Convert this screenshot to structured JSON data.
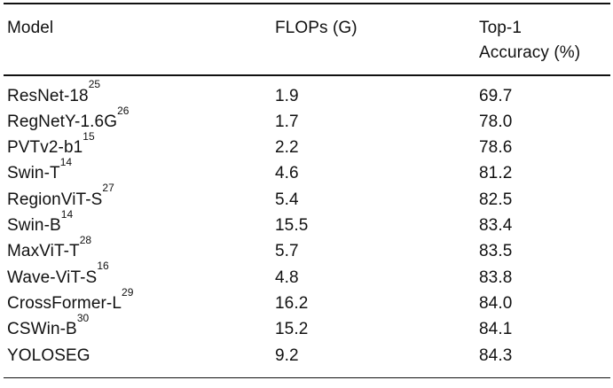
{
  "page": {
    "background": "#ffffff",
    "text_color": "#111111",
    "rule_color": "#111111"
  },
  "table": {
    "headers": {
      "model": "Model",
      "flops": "FLOPs (G)",
      "top1_line1": "Top-1",
      "top1_line2": "Accuracy (%)"
    },
    "rows": [
      {
        "model": "ResNet-18",
        "cite": "25",
        "flops": "1.9",
        "top1": "69.7"
      },
      {
        "model": "RegNetY-1.6G",
        "cite": "26",
        "flops": "1.7",
        "top1": "78.0"
      },
      {
        "model": "PVTv2-b1",
        "cite": "15",
        "flops": "2.2",
        "top1": "78.6"
      },
      {
        "model": "Swin-T",
        "cite": "14",
        "flops": "4.6",
        "top1": "81.2"
      },
      {
        "model": "RegionViT-S",
        "cite": "27",
        "flops": "5.4",
        "top1": "82.5"
      },
      {
        "model": "Swin-B",
        "cite": "14",
        "flops": "15.5",
        "top1": "83.4"
      },
      {
        "model": "MaxViT-T",
        "cite": "28",
        "flops": "5.7",
        "top1": "83.5"
      },
      {
        "model": "Wave-ViT-S",
        "cite": "16",
        "flops": "4.8",
        "top1": "83.8"
      },
      {
        "model": "CrossFormer-L",
        "cite": "29",
        "flops": "16.2",
        "top1": "84.0"
      },
      {
        "model": "CSWin-B",
        "cite": "30",
        "flops": "15.2",
        "top1": "84.1"
      },
      {
        "model": "YOLOSEG",
        "cite": "",
        "flops": "9.2",
        "top1": "84.3"
      }
    ]
  }
}
